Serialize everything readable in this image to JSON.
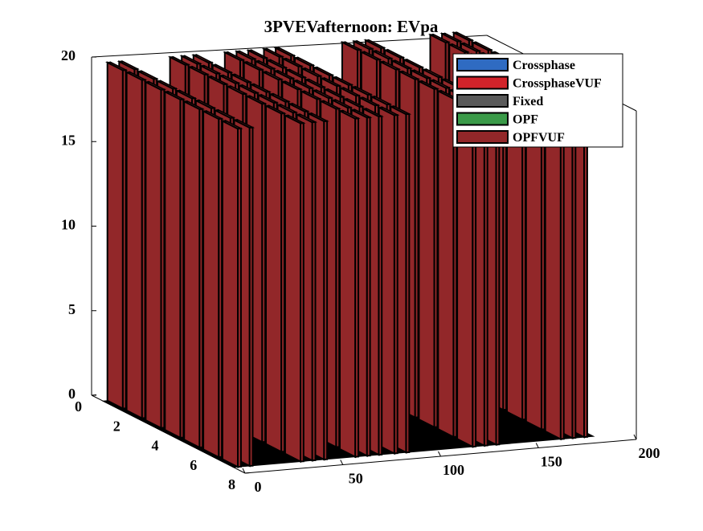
{
  "chart_data": {
    "type": "bar3",
    "title": "3PVEVafternoon: EVpa",
    "xlabel": "",
    "ylabel": "",
    "zlabel": "",
    "x_range": [
      0,
      200
    ],
    "y_range": [
      0,
      8
    ],
    "z_range": [
      0,
      20
    ],
    "x_ticks": [
      "0",
      "50",
      "100",
      "150",
      "200"
    ],
    "y_ticks": [
      "0",
      "2",
      "4",
      "6",
      "8"
    ],
    "z_ticks": [
      "0",
      "5",
      "10",
      "15",
      "20"
    ],
    "legend_position": "top-right",
    "grid": false,
    "series": [
      {
        "name": "Crossphase",
        "color": "#2f6bc2",
        "values": []
      },
      {
        "name": "CrossphaseVUF",
        "color": "#d2232a",
        "values": []
      },
      {
        "name": "Fixed",
        "color": "#5a5a5a",
        "values": []
      },
      {
        "name": "OPF",
        "color": "#3a9a48",
        "values": []
      },
      {
        "name": "OPFVUF",
        "color": "#922729",
        "values": [
          {
            "x": 3,
            "y": 20
          },
          {
            "x": 9,
            "y": 20
          },
          {
            "x": 35,
            "y": 20
          },
          {
            "x": 41,
            "y": 20
          },
          {
            "x": 47,
            "y": 20
          },
          {
            "x": 63,
            "y": 20
          },
          {
            "x": 69,
            "y": 20
          },
          {
            "x": 75,
            "y": 20
          },
          {
            "x": 83,
            "y": 20
          },
          {
            "x": 89,
            "y": 20
          },
          {
            "x": 123,
            "y": 20
          },
          {
            "x": 129,
            "y": 20
          },
          {
            "x": 135,
            "y": 20
          },
          {
            "x": 168,
            "y": 20
          },
          {
            "x": 174,
            "y": 20
          },
          {
            "x": 180,
            "y": 20
          }
        ]
      }
    ],
    "rows": [
      1,
      2,
      3,
      4,
      5,
      6,
      7
    ]
  }
}
